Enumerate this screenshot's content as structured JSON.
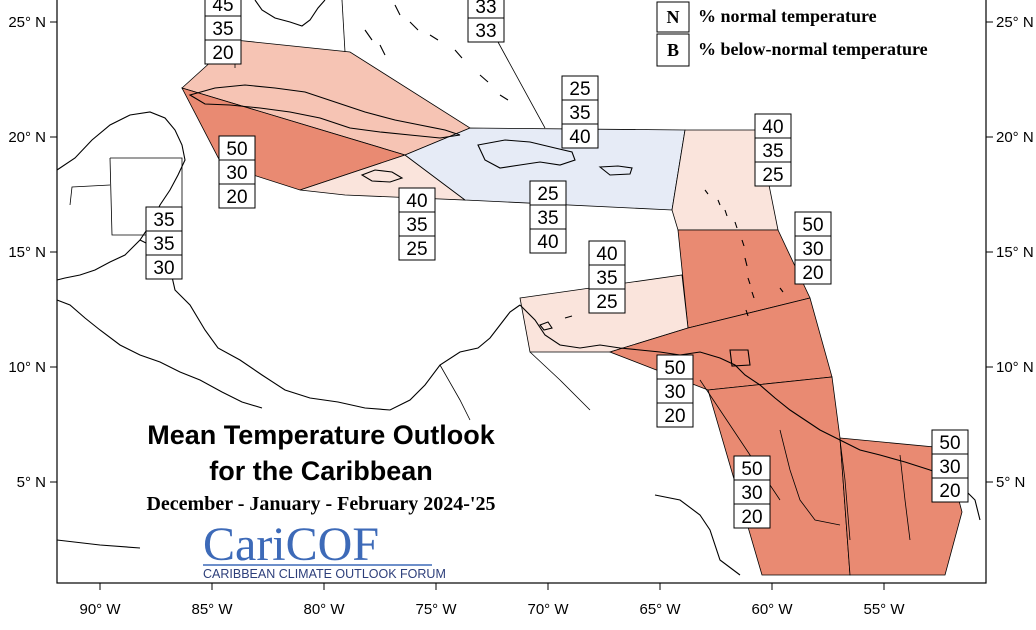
{
  "title": {
    "line1": "Mean Temperature Outlook",
    "line2": "for the Caribbean",
    "period": "December - January - February 2024-'25"
  },
  "logo": {
    "text": "CariCOF",
    "subtitle": "CARIBBEAN CLIMATE OUTLOOK FORUM"
  },
  "legend": [
    {
      "key": "N",
      "text": "% normal temperature"
    },
    {
      "key": "B",
      "text": "% below-normal temperature"
    }
  ],
  "axes": {
    "lon_labels": [
      "90° W",
      "85° W",
      "80° W",
      "75° W",
      "70° W",
      "65° W",
      "60° W",
      "55° W"
    ],
    "lat_labels": [
      "25° N",
      "20° N",
      "15° N",
      "10° N",
      "5° N"
    ]
  },
  "colors": {
    "above_50": "#e98a72",
    "above_45": "#f6c4b4",
    "above_40": "#fae4dc",
    "normal_leaning_below": "#e6ebf6",
    "outline": "#000000"
  },
  "regions": [
    {
      "id": "cuba-west",
      "values": [
        "50",
        "30",
        "20"
      ],
      "color": "#e98a72"
    },
    {
      "id": "cuba-east",
      "values": [
        "45",
        "35",
        "20"
      ],
      "color": "#f6c4b4"
    },
    {
      "id": "jamaica",
      "values": [
        "40",
        "35",
        "25"
      ],
      "color": "#fae4dc"
    },
    {
      "id": "hispaniola-pr",
      "values": [
        "25",
        "35",
        "40"
      ],
      "color": "#e6ebf6"
    },
    {
      "id": "northern-lesser-antilles",
      "values": [
        "40",
        "35",
        "25"
      ],
      "color": "#fae4dc"
    },
    {
      "id": "windward-islands",
      "values": [
        "50",
        "30",
        "20"
      ],
      "color": "#e98a72"
    },
    {
      "id": "abc-islands",
      "values": [
        "40",
        "35",
        "25"
      ],
      "color": "#fae4dc"
    },
    {
      "id": "trinidad-tobago",
      "values": [
        "50",
        "30",
        "20"
      ],
      "color": "#e98a72"
    },
    {
      "id": "guyana",
      "values": [
        "50",
        "30",
        "20"
      ],
      "color": "#e98a72"
    },
    {
      "id": "suriname-fg",
      "values": [
        "50",
        "30",
        "20"
      ],
      "color": "#e98a72"
    },
    {
      "id": "belize",
      "values": [
        "35",
        "35",
        "30"
      ],
      "color": "none"
    },
    {
      "id": "bahamas",
      "values": [
        "33",
        "33"
      ],
      "color": "none"
    }
  ]
}
